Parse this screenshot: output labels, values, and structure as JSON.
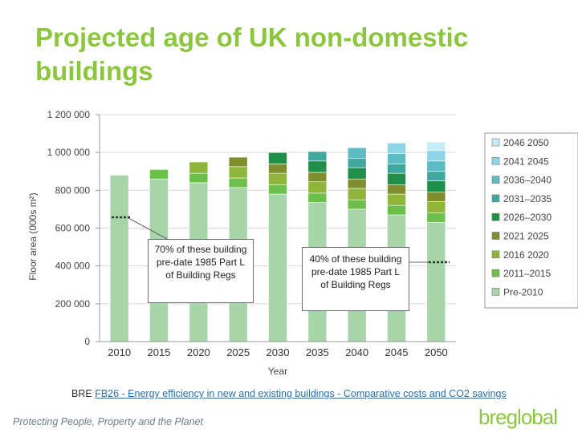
{
  "title": "Projected age of UK non-domestic buildings",
  "callouts": {
    "left": "70% of these building pre-date 1985 Part L of Building Regs",
    "right": "40% of these building pre-date 1985 Part L of Building Regs"
  },
  "source": {
    "prefix": "BRE ",
    "link_text": "FB26 - Energy efficiency in new and existing buildings - Comparative costs and CO2 savings"
  },
  "footer": {
    "tagline": "Protecting People, Property and the Planet",
    "logo": "breglobal"
  },
  "colors": {
    "title": "#8cc63f",
    "pre2010": "#a8d4a9"
  },
  "chart_data": {
    "type": "bar",
    "stacked": true,
    "xlabel": "Year",
    "ylabel": "Floor area (000s m²)",
    "ylim": [
      0,
      1200000
    ],
    "yticks": [
      0,
      200000,
      400000,
      600000,
      800000,
      1000000,
      1200000
    ],
    "ytick_labels": [
      "0",
      "200 000",
      "400 000",
      "600 000",
      "800 000",
      "1 000 000",
      "1 200 000"
    ],
    "categories": [
      "2010",
      "2015",
      "2020",
      "2025",
      "2030",
      "2035",
      "2040",
      "2045",
      "2050"
    ],
    "legend_position": "right",
    "series": [
      {
        "name": "Pre-2010",
        "color": "#a8d4a9",
        "values": [
          880000,
          860000,
          840000,
          815000,
          780000,
          735000,
          700000,
          670000,
          630000
        ]
      },
      {
        "name": "2011–2015",
        "color": "#6cc04a",
        "values": [
          0,
          50000,
          50000,
          50000,
          50000,
          50000,
          50000,
          50000,
          50000
        ]
      },
      {
        "name": "2016 2020",
        "color": "#8fb63a",
        "values": [
          0,
          0,
          60000,
          60000,
          60000,
          60000,
          60000,
          60000,
          60000
        ]
      },
      {
        "name": "2021 2025",
        "color": "#7d8f2e",
        "values": [
          0,
          0,
          0,
          50000,
          50000,
          50000,
          50000,
          50000,
          50000
        ]
      },
      {
        "name": "2026–2030",
        "color": "#1f8f4a",
        "values": [
          0,
          0,
          0,
          0,
          60000,
          60000,
          60000,
          60000,
          60000
        ]
      },
      {
        "name": "2031–2035",
        "color": "#3fa89c",
        "values": [
          0,
          0,
          0,
          0,
          0,
          50000,
          50000,
          50000,
          50000
        ]
      },
      {
        "name": "2036–2040",
        "color": "#5bbcc4",
        "values": [
          0,
          0,
          0,
          0,
          0,
          0,
          55000,
          55000,
          55000
        ]
      },
      {
        "name": "2041 2045",
        "color": "#8fd3e8",
        "values": [
          0,
          0,
          0,
          0,
          0,
          0,
          0,
          55000,
          55000
        ]
      },
      {
        "name": "2046 2050",
        "color": "#c8ecf7",
        "values": [
          0,
          0,
          0,
          0,
          0,
          0,
          0,
          0,
          45000
        ]
      }
    ]
  }
}
